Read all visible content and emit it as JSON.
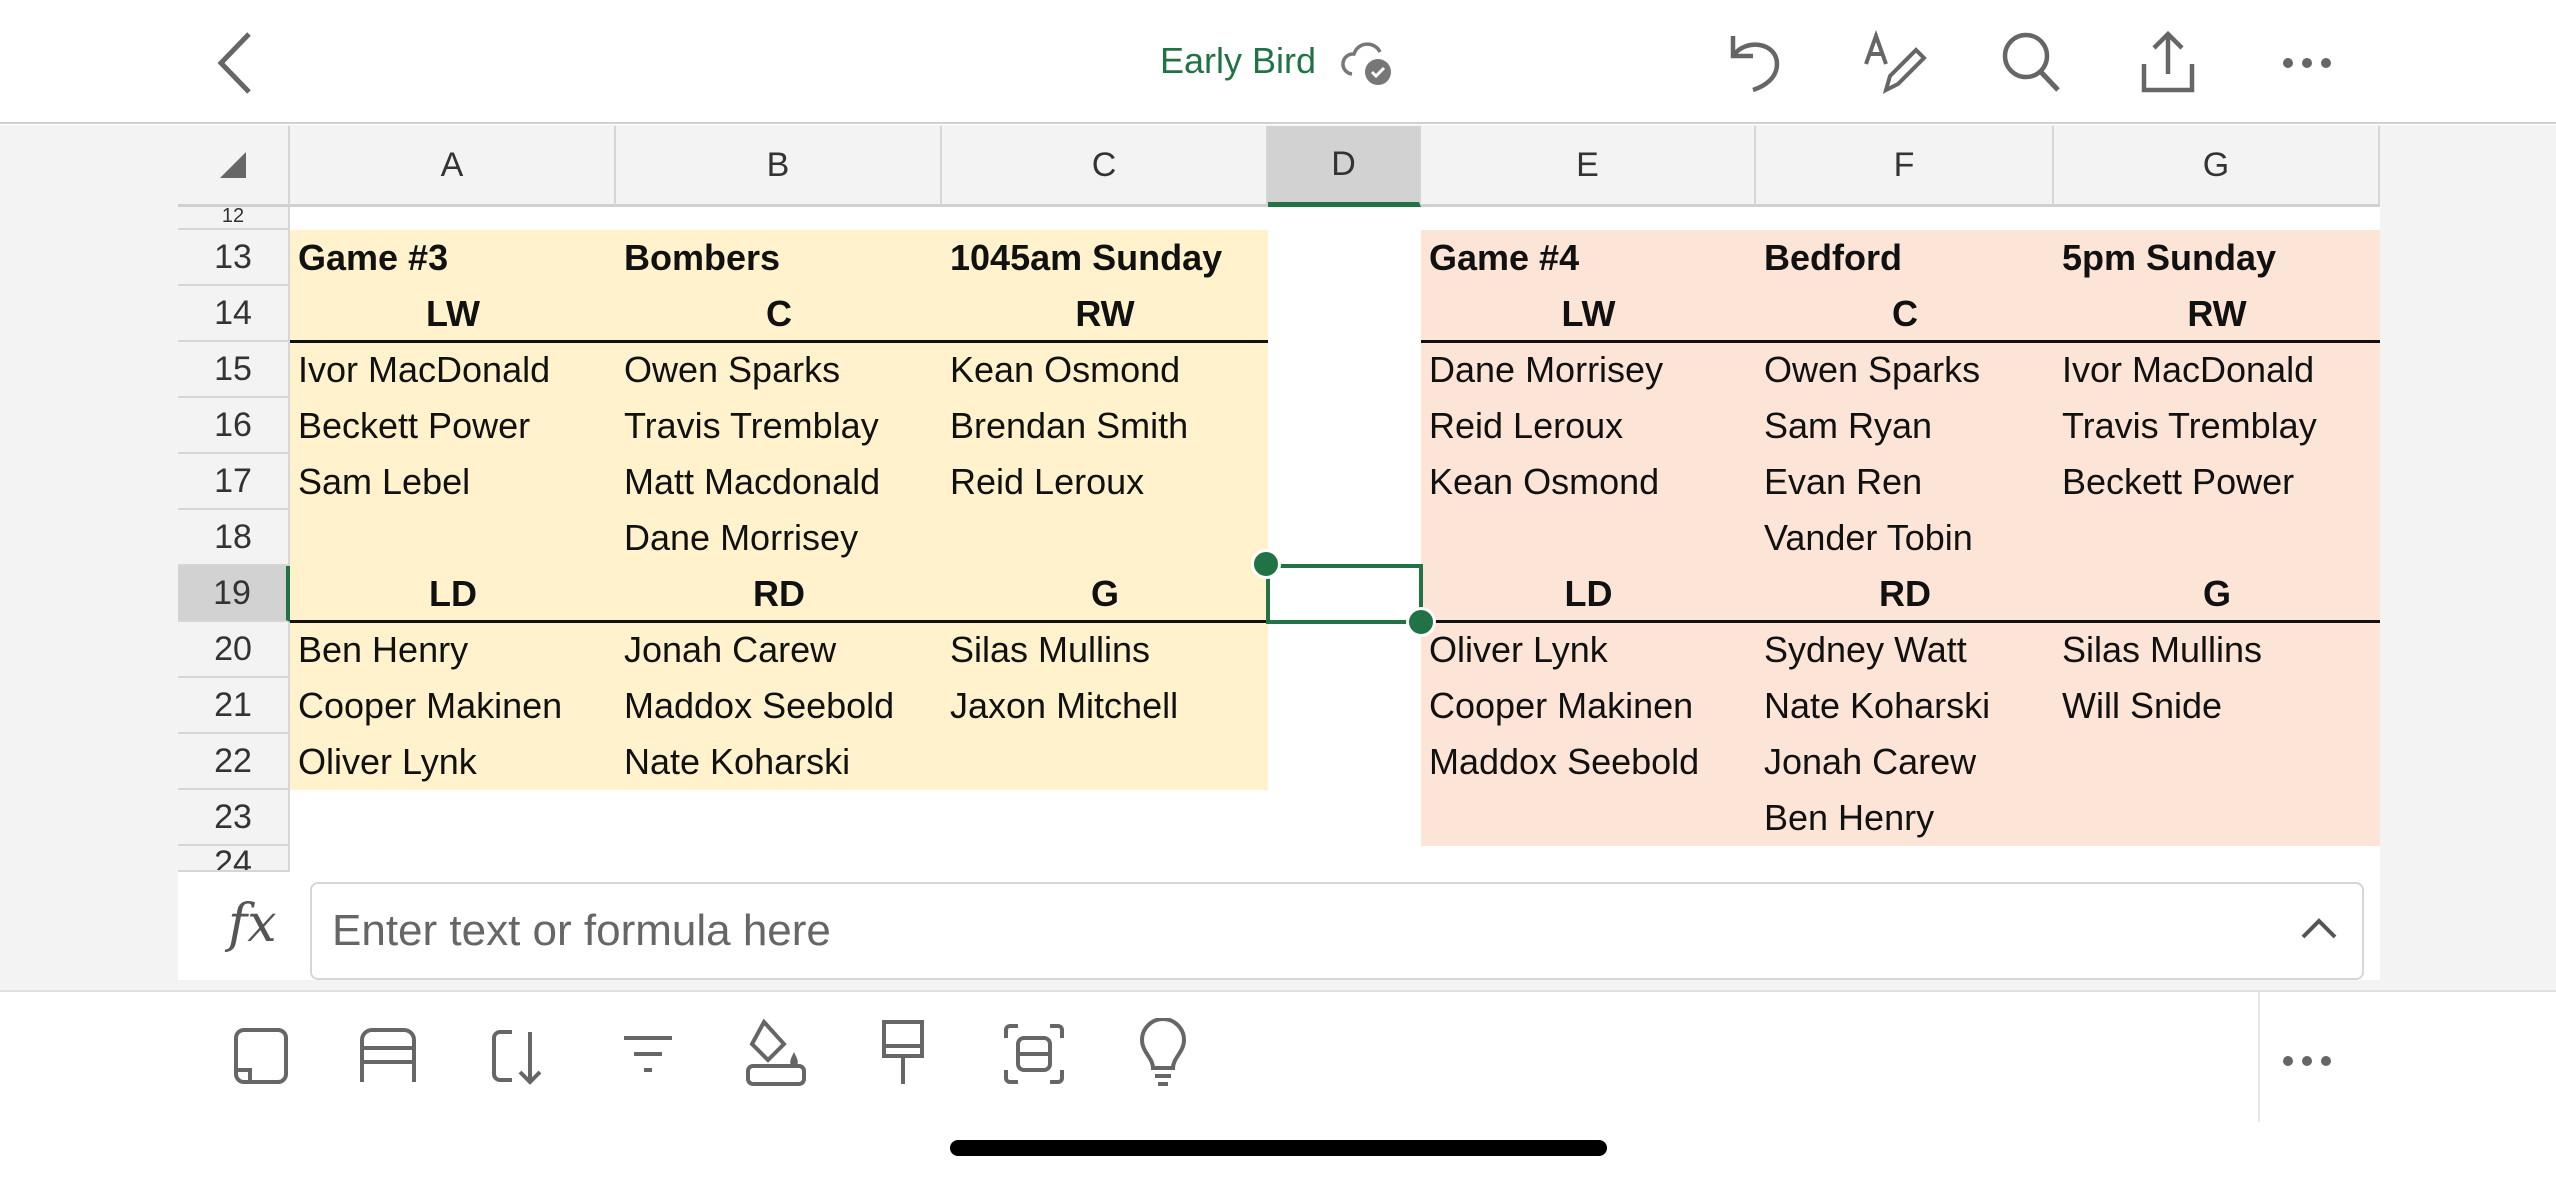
{
  "header": {
    "title": "Early Bird",
    "icons": [
      "back-chevron-icon",
      "cloud-saved-icon",
      "undo-icon",
      "draw-pen-icon",
      "search-icon",
      "share-icon",
      "more-icon"
    ]
  },
  "columns": [
    "A",
    "B",
    "C",
    "D",
    "E",
    "F",
    "G"
  ],
  "selected_column": "D",
  "selected_row": "19",
  "selected_cell": "D19",
  "rows": [
    {
      "n": "13",
      "cells": [
        "Game #3",
        "Bombers",
        "1045am Sunday",
        "",
        "Game #4",
        "Bedford",
        "5pm Sunday"
      ]
    },
    {
      "n": "14",
      "cells": [
        "LW",
        "C",
        "RW",
        "",
        "LW",
        "C",
        "RW"
      ]
    },
    {
      "n": "15",
      "cells": [
        "Ivor MacDonald",
        "Owen Sparks",
        "Kean Osmond",
        "",
        "Dane Morrisey",
        "Owen Sparks",
        "Ivor MacDonald"
      ]
    },
    {
      "n": "16",
      "cells": [
        "Beckett Power",
        "Travis Tremblay",
        "Brendan Smith",
        "",
        "Reid Leroux",
        "Sam Ryan",
        "Travis Tremblay"
      ]
    },
    {
      "n": "17",
      "cells": [
        "Sam Lebel",
        "Matt Macdonald",
        "Reid Leroux",
        "",
        "Kean Osmond",
        "Evan Ren",
        "Beckett Power"
      ]
    },
    {
      "n": "18",
      "cells": [
        "",
        "Dane Morrisey",
        "",
        "",
        "",
        "Vander Tobin",
        ""
      ]
    },
    {
      "n": "19",
      "cells": [
        "LD",
        "RD",
        "G",
        "",
        "LD",
        "RD",
        "G"
      ]
    },
    {
      "n": "20",
      "cells": [
        "Ben Henry",
        "Jonah Carew",
        "Silas Mullins",
        "",
        "Oliver Lynk",
        "Sydney Watt",
        "Silas Mullins"
      ]
    },
    {
      "n": "21",
      "cells": [
        "Cooper Makinen",
        "Maddox Seebold",
        "Jaxon Mitchell",
        "",
        "Cooper Makinen",
        "Nate Koharski",
        "Will Snide"
      ]
    },
    {
      "n": "22",
      "cells": [
        "Oliver Lynk",
        "Nate Koharski",
        "",
        "",
        "Maddox Seebold",
        "Jonah Carew",
        ""
      ]
    },
    {
      "n": "23",
      "cells": [
        "",
        "",
        "",
        "",
        "",
        "Ben Henry",
        ""
      ]
    }
  ],
  "partial_rows": [
    "12",
    "24"
  ],
  "colors": {
    "accent": "#217346",
    "game3_fill": "#FFF2CC",
    "game4_fill": "#FCE4D6"
  },
  "formula_bar": {
    "placeholder": "Enter text or formula here",
    "fx_label": "fx"
  },
  "toolbar": {
    "icons": [
      "cell-format-icon",
      "insert-rows-icon",
      "insert-columns-icon",
      "filter-icon",
      "fill-color-icon",
      "format-painter-icon",
      "select-range-icon",
      "ideas-lightbulb-icon",
      "more-icon"
    ]
  }
}
